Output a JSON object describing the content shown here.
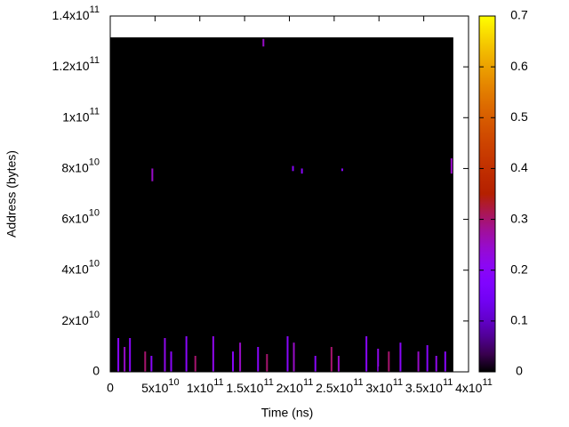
{
  "chart_data": {
    "type": "heatmap",
    "x_label": "Time (ns)",
    "y_label": "Address (bytes)",
    "xlim": [
      0,
      400000000000
    ],
    "ylim": [
      0,
      140000000000
    ],
    "zlim": [
      0,
      0.7
    ],
    "xticks": [
      0,
      {
        "value": 50000000000,
        "label": "5x10",
        "exponent": "10"
      },
      {
        "value": 100000000000,
        "label": "1x10",
        "exponent": "11"
      },
      {
        "value": 150000000000,
        "label": "1.5x10",
        "exponent": "11"
      },
      {
        "value": 200000000000,
        "label": "2x10",
        "exponent": "11"
      },
      {
        "value": 250000000000,
        "label": "2.5x10",
        "exponent": "11"
      },
      {
        "value": 300000000000,
        "label": "3x10",
        "exponent": "11"
      },
      {
        "value": 350000000000,
        "label": "3.5x10",
        "exponent": "11"
      },
      {
        "value": 400000000000,
        "label": "4x10",
        "exponent": "11"
      }
    ],
    "yticks": [
      0,
      {
        "value": 20000000000,
        "label": "2x10",
        "exponent": "10"
      },
      {
        "value": 40000000000,
        "label": "4x10",
        "exponent": "10"
      },
      {
        "value": 60000000000,
        "label": "6x10",
        "exponent": "10"
      },
      {
        "value": 80000000000,
        "label": "8x10",
        "exponent": "10"
      },
      {
        "value": 100000000000,
        "label": "1x10",
        "exponent": "11"
      },
      {
        "value": 120000000000,
        "label": "1.2x10",
        "exponent": "11"
      },
      {
        "value": 140000000000,
        "label": "1.4x10",
        "exponent": "11"
      }
    ],
    "zticks": [
      0,
      0.1,
      0.2,
      0.3,
      0.4,
      0.5,
      0.6,
      0.7
    ],
    "extent": {
      "x": [
        0,
        383000000000
      ],
      "y": [
        0,
        131600000000
      ],
      "value": 0
    },
    "cells": {
      "x": [
        9000000000,
        16000000000,
        22000000000,
        39000000000,
        46000000000,
        61000000000,
        68000000000,
        85000000000,
        95000000000,
        115000000000,
        137000000000,
        145000000000,
        165000000000,
        175000000000,
        198000000000,
        205000000000,
        229000000000,
        247000000000,
        255000000000,
        286000000000,
        299000000000,
        311000000000,
        324000000000,
        344000000000,
        354000000000,
        364000000000,
        374000000000,
        47000000000,
        171000000000,
        204000000000,
        214000000000,
        259000000000,
        381000000000
      ],
      "y": [
        0,
        0,
        0,
        0,
        0,
        0,
        0,
        0,
        0,
        0,
        0,
        0,
        0,
        0,
        0,
        0,
        0,
        0,
        0,
        0,
        0,
        0,
        0,
        0,
        0,
        0,
        0,
        75000000000,
        128000000000,
        79000000000,
        78000000000,
        79000000000,
        78000000000
      ],
      "y_top": [
        13300000000,
        9800000000,
        13300000000,
        8000000000,
        6300000000,
        13300000000,
        8000000000,
        14000000000,
        6300000000,
        14000000000,
        8000000000,
        11500000000,
        9800000000,
        7000000000,
        14000000000,
        11500000000,
        6300000000,
        9800000000,
        6300000000,
        14000000000,
        9100000000,
        8000000000,
        11500000000,
        8000000000,
        10500000000,
        6300000000,
        8000000000,
        80000000000,
        131000000000,
        81000000000,
        80000000000,
        80000000000,
        84000000000
      ],
      "values": [
        0.2,
        0.25,
        0.2,
        0.3,
        0.2,
        0.22,
        0.2,
        0.2,
        0.3,
        0.22,
        0.2,
        0.25,
        0.2,
        0.3,
        0.2,
        0.25,
        0.2,
        0.3,
        0.25,
        0.2,
        0.22,
        0.3,
        0.2,
        0.25,
        0.2,
        0.22,
        0.2,
        0.25,
        0.25,
        0.2,
        0.2,
        0.2,
        0.25
      ]
    }
  }
}
